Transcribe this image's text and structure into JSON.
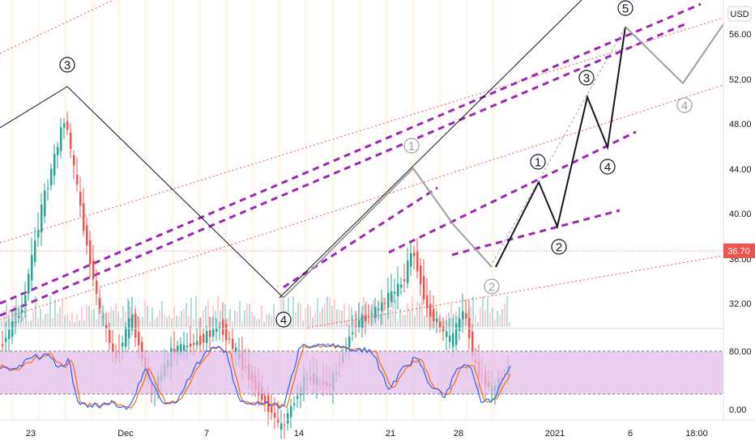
{
  "chart_data": {
    "type": "candlestick",
    "currency": "USD",
    "last_price": "36.70",
    "accent_colors": {
      "up": "#26a69a",
      "down": "#ef5350",
      "channel": "#9c27b0",
      "stoch_k": "#2962ff",
      "stoch_d": "#ff6d00",
      "stoch_band": "#e1bee7",
      "price_badge": "#ef5350"
    },
    "y_axis": {
      "ticks": [
        "56.00",
        "52.00",
        "48.00",
        "44.00",
        "40.00",
        "36.00",
        "32.00"
      ],
      "range": [
        30,
        58
      ]
    },
    "stoch_axis": {
      "ticks": [
        "80.00",
        "0.00"
      ],
      "range": [
        0,
        100
      ],
      "band": [
        20,
        80
      ]
    },
    "x_axis": {
      "ticks": [
        "23",
        "Dec",
        "7",
        "14",
        "21",
        "28",
        "2021",
        "6",
        "18:00"
      ]
    },
    "waves": [
      {
        "label": "3",
        "x": "Nov 25",
        "y": 51.4
      },
      {
        "label": "4",
        "x": "Dec 13",
        "y": 32.7
      },
      {
        "label": "1",
        "x": "Dec 22",
        "y": 44.3
      },
      {
        "label": "2",
        "x": "Dec 31",
        "y": 35.2
      },
      {
        "label": "1",
        "x": "Jan 2",
        "y": 42.8
      },
      {
        "label": "2",
        "x": "Jan 3",
        "y": 38.8
      },
      {
        "label": "3",
        "x": "Jan 4",
        "y": 50.3
      },
      {
        "label": "4",
        "x": "Jan 5",
        "y": 45.8
      },
      {
        "label": "5",
        "x": "Jan 6",
        "y": 56.6
      },
      {
        "label": "4",
        "x": "Jan 7",
        "y": 51.5
      }
    ]
  }
}
